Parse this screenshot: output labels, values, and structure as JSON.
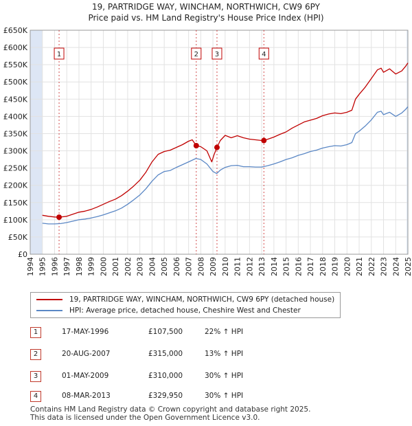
{
  "title_line1": "19, PARTRIDGE WAY, WINCHAM, NORTHWICH, CW9 6PY",
  "title_line2": "Price paid vs. HM Land Registry's House Price Index (HPI)",
  "colors": {
    "property": "#c00000",
    "hpi": "#5a87c5",
    "marker": "#c00000",
    "shade": "#dde6f5"
  },
  "chart_data": {
    "type": "line",
    "title": "Price paid vs. HM Land Registry's House Price Index (HPI)",
    "ylim": [
      0,
      650000
    ],
    "xlim": [
      1994,
      2025
    ],
    "y_ticks": [
      0,
      50000,
      100000,
      150000,
      200000,
      250000,
      300000,
      350000,
      400000,
      450000,
      500000,
      550000,
      600000,
      650000
    ],
    "y_tick_labels": [
      "£0",
      "£50K",
      "£100K",
      "£150K",
      "£200K",
      "£250K",
      "£300K",
      "£350K",
      "£400K",
      "£450K",
      "£500K",
      "£550K",
      "£600K",
      "£650K"
    ],
    "x_ticks": [
      1994,
      1995,
      1996,
      1997,
      1998,
      1999,
      2000,
      2001,
      2002,
      2003,
      2004,
      2005,
      2006,
      2007,
      2008,
      2009,
      2010,
      2011,
      2012,
      2013,
      2014,
      2015,
      2016,
      2017,
      2018,
      2019,
      2020,
      2021,
      2022,
      2023,
      2024,
      2025
    ],
    "x_tick_labels": [
      "1994",
      "1995",
      "1996",
      "1997",
      "1998",
      "1999",
      "2000",
      "2001",
      "2002",
      "2003",
      "2004",
      "2005",
      "2006",
      "2007",
      "2008",
      "2009",
      "2010",
      "2011",
      "2012",
      "2013",
      "2014",
      "2015",
      "2016",
      "2017",
      "2018",
      "2019",
      "2020",
      "2021",
      "2022",
      "2023",
      "2024",
      "2025"
    ],
    "shaded_range": [
      1994,
      1995
    ],
    "series": [
      {
        "name": "19, PARTRIDGE WAY, WINCHAM, NORTHWICH, CW9 6PY (detached house)",
        "x": [
          1995.0,
          1995.5,
          1996.0,
          1996.37,
          1997.0,
          1997.5,
          1998.0,
          1998.5,
          1999.0,
          1999.5,
          2000.0,
          2000.5,
          2001.0,
          2001.5,
          2002.0,
          2002.5,
          2003.0,
          2003.5,
          2004.0,
          2004.5,
          2005.0,
          2005.5,
          2006.0,
          2006.5,
          2007.0,
          2007.3,
          2007.63,
          2008.0,
          2008.5,
          2008.9,
          2009.1,
          2009.33,
          2009.6,
          2010.0,
          2010.5,
          2011.0,
          2011.5,
          2012.0,
          2012.5,
          2013.0,
          2013.18,
          2013.6,
          2014.0,
          2014.5,
          2015.0,
          2015.5,
          2016.0,
          2016.5,
          2017.0,
          2017.5,
          2018.0,
          2018.5,
          2019.0,
          2019.5,
          2020.0,
          2020.4,
          2020.7,
          2021.0,
          2021.5,
          2022.0,
          2022.5,
          2022.8,
          2023.0,
          2023.5,
          2024.0,
          2024.5,
          2024.8,
          2025.0
        ],
        "y": [
          113000,
          110000,
          108000,
          107500,
          110000,
          116000,
          122000,
          125000,
          130000,
          137000,
          145000,
          153000,
          160000,
          170000,
          183000,
          198000,
          215000,
          238000,
          268000,
          290000,
          298000,
          302000,
          310000,
          318000,
          328000,
          332000,
          315000,
          312000,
          300000,
          268000,
          290000,
          310000,
          330000,
          345000,
          338000,
          344000,
          338000,
          334000,
          332000,
          330000,
          329950,
          335000,
          340000,
          348000,
          355000,
          366000,
          375000,
          384000,
          389000,
          394000,
          402000,
          407000,
          410000,
          408000,
          412000,
          418000,
          450000,
          464000,
          485000,
          510000,
          535000,
          540000,
          528000,
          538000,
          523000,
          532000,
          545000,
          555000
        ]
      },
      {
        "name": "HPI: Average price, detached house, Cheshire West and Chester",
        "x": [
          1995.0,
          1995.5,
          1996.0,
          1996.5,
          1997.0,
          1997.5,
          1998.0,
          1998.5,
          1999.0,
          1999.5,
          2000.0,
          2000.5,
          2001.0,
          2001.5,
          2002.0,
          2002.5,
          2003.0,
          2003.5,
          2004.0,
          2004.5,
          2005.0,
          2005.5,
          2006.0,
          2006.5,
          2007.0,
          2007.6,
          2008.0,
          2008.5,
          2009.0,
          2009.3,
          2009.6,
          2010.0,
          2010.5,
          2011.0,
          2011.5,
          2012.0,
          2012.5,
          2013.0,
          2013.5,
          2014.0,
          2014.5,
          2015.0,
          2015.5,
          2016.0,
          2016.5,
          2017.0,
          2017.5,
          2018.0,
          2018.5,
          2019.0,
          2019.5,
          2020.0,
          2020.4,
          2020.7,
          2021.0,
          2021.5,
          2022.0,
          2022.5,
          2022.8,
          2023.0,
          2023.5,
          2024.0,
          2024.5,
          2024.8,
          2025.0
        ],
        "y": [
          90000,
          88000,
          88000,
          89000,
          92000,
          96000,
          100000,
          102000,
          105000,
          109000,
          114000,
          120000,
          126000,
          134000,
          145000,
          158000,
          172000,
          190000,
          212000,
          230000,
          240000,
          243000,
          252000,
          260000,
          268000,
          278000,
          275000,
          262000,
          240000,
          234000,
          244000,
          252000,
          257000,
          258000,
          254000,
          254000,
          253000,
          253000,
          257000,
          262000,
          268000,
          275000,
          280000,
          287000,
          292000,
          298000,
          302000,
          308000,
          312000,
          315000,
          314000,
          318000,
          324000,
          350000,
          357000,
          372000,
          390000,
          412000,
          415000,
          405000,
          412000,
          400000,
          410000,
          420000,
          428000
        ]
      }
    ],
    "transactions": [
      {
        "id": "1",
        "year": 1996.37,
        "price": 107500
      },
      {
        "id": "2",
        "year": 2007.63,
        "price": 315000
      },
      {
        "id": "3",
        "year": 2009.33,
        "price": 310000
      },
      {
        "id": "4",
        "year": 2013.18,
        "price": 329950
      }
    ]
  },
  "legend": {
    "property_label": "19, PARTRIDGE WAY, WINCHAM, NORTHWICH, CW9 6PY (detached house)",
    "hpi_label": "HPI: Average price, detached house, Cheshire West and Chester"
  },
  "table": [
    {
      "num": "1",
      "date": "17-MAY-1996",
      "price": "£107,500",
      "hpi": "22% ↑ HPI"
    },
    {
      "num": "2",
      "date": "20-AUG-2007",
      "price": "£315,000",
      "hpi": "13% ↑ HPI"
    },
    {
      "num": "3",
      "date": "01-MAY-2009",
      "price": "£310,000",
      "hpi": "30% ↑ HPI"
    },
    {
      "num": "4",
      "date": "08-MAR-2013",
      "price": "£329,950",
      "hpi": "30% ↑ HPI"
    }
  ],
  "footer": {
    "line1": "Contains HM Land Registry data © Crown copyright and database right 2025.",
    "line2": "This data is licensed under the Open Government Licence v3.0."
  }
}
